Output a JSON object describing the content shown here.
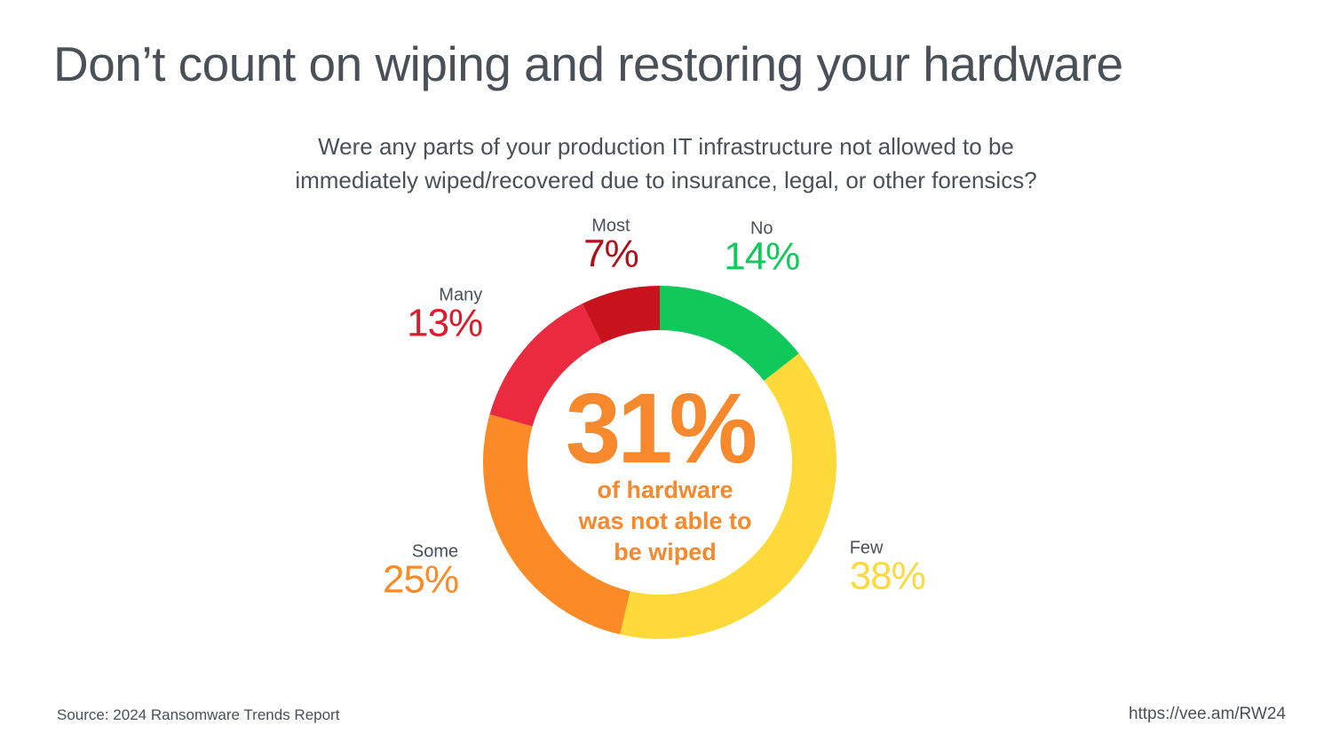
{
  "header": {
    "title": "Don’t count on wiping and restoring your hardware",
    "subtitle_line1": "Were any parts of your production IT infrastructure not allowed to be",
    "subtitle_line2": "immediately wiped/recovered due to insurance, legal, or other forensics?"
  },
  "chart_data": {
    "type": "pie",
    "donut": true,
    "slices": [
      {
        "label": "No",
        "value": 14,
        "value_label": "14%",
        "color": "#10c95a"
      },
      {
        "label": "Few",
        "value": 38,
        "value_label": "38%",
        "color": "#fdd93a"
      },
      {
        "label": "Some",
        "value": 25,
        "value_label": "25%",
        "color": "#fc8a26"
      },
      {
        "label": "Many",
        "value": 13,
        "value_label": "13%",
        "color": "#ea2a3e"
      },
      {
        "label": "Most",
        "value": 7,
        "value_label": "7%",
        "color": "#c8121e"
      }
    ],
    "label_colors": {
      "No": "#10c95a",
      "Few": "#fdd93a",
      "Some": "#fc8a26",
      "Many": "#df1a2a",
      "Most": "#b0101a"
    },
    "center": {
      "value": "31%",
      "text_lines": [
        "of hardware",
        "was not able to",
        "be wiped"
      ],
      "color": "#f7882c"
    }
  },
  "footer": {
    "source": "Source: 2024 Ransomware Trends Report",
    "url": "https://vee.am/RW24"
  }
}
